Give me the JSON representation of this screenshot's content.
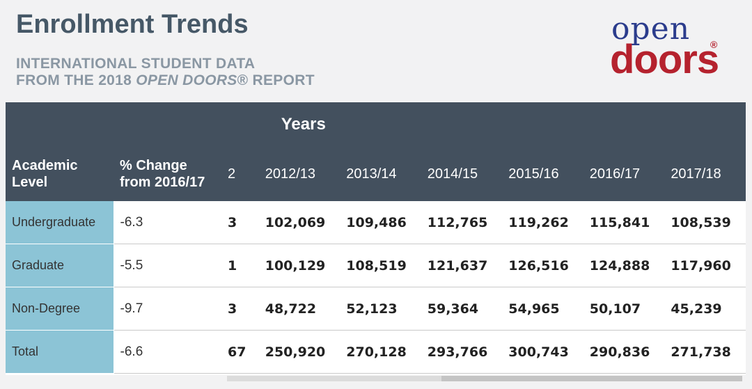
{
  "header": {
    "title": "Enrollment Trends",
    "subtitle_line1": "INTERNATIONAL STUDENT DATA",
    "subtitle_line2_prefix": "FROM THE 2018 ",
    "subtitle_line2_em": "OPEN DOORS",
    "subtitle_line2_suffix": "® REPORT"
  },
  "logo": {
    "top": "open",
    "bottom": "doors",
    "mark": "®"
  },
  "colors": {
    "header_bg": "#43505e",
    "level_bg": "#8cc4d6",
    "logo_blue": "#2b3c8c",
    "logo_red": "#b5222e",
    "title": "#465867"
  },
  "chart_data": {
    "type": "table",
    "group_header": "Years",
    "columns": [
      "Academic Level",
      "% Change from 2016/17",
      "2",
      "2012/13",
      "2013/14",
      "2014/15",
      "2015/16",
      "2016/17",
      "2017/18"
    ],
    "rows": [
      {
        "level": "Undergraduate",
        "change": "-6.3",
        "rank": "3",
        "values": [
          "102,069",
          "109,486",
          "112,765",
          "119,262",
          "115,841",
          "108,539"
        ]
      },
      {
        "level": "Graduate",
        "change": "-5.5",
        "rank": "1",
        "values": [
          "100,129",
          "108,519",
          "121,637",
          "126,516",
          "124,888",
          "117,960"
        ]
      },
      {
        "level": "Non-Degree",
        "change": "-9.7",
        "rank": "3",
        "values": [
          "48,722",
          "52,123",
          "59,364",
          "54,965",
          "50,107",
          "45,239"
        ]
      },
      {
        "level": "Total",
        "change": "-6.6",
        "rank": "67",
        "values": [
          "250,920",
          "270,128",
          "293,766",
          "300,743",
          "290,836",
          "271,738"
        ]
      }
    ]
  }
}
